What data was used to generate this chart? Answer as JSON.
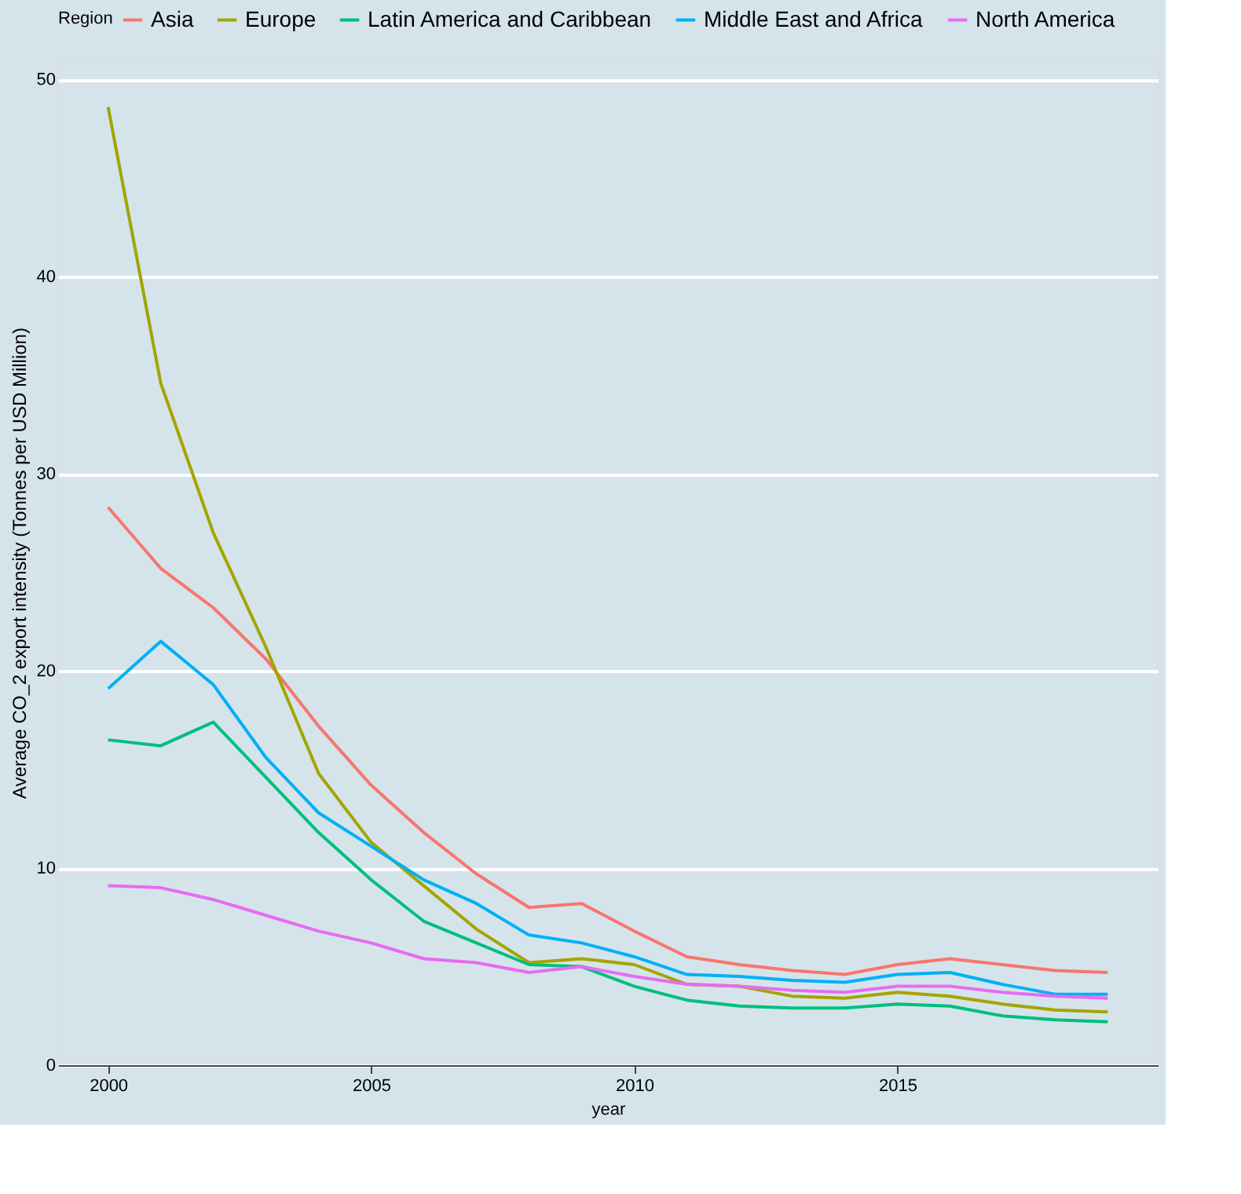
{
  "chart_data": {
    "type": "line",
    "xlabel": "year",
    "ylabel": "Average CO_2 export intensity (Tonnes per USD Million)",
    "legend_title": "Region",
    "legend": "top",
    "grid": "y",
    "marker": "none",
    "line_style": "solid",
    "x": [
      2000,
      2001,
      2002,
      2003,
      2004,
      2005,
      2006,
      2007,
      2008,
      2009,
      2010,
      2011,
      2012,
      2013,
      2014,
      2015,
      2016,
      2017,
      2018,
      2019
    ],
    "xlim": [
      1999.05,
      2019.95
    ],
    "xticks": [
      2000,
      2005,
      2010,
      2015
    ],
    "ylim": [
      0,
      51
    ],
    "yticks": [
      0,
      10,
      20,
      30,
      40,
      50
    ],
    "series": [
      {
        "name": "Asia",
        "color": "#f8766d",
        "values": [
          28.3,
          25.2,
          23.2,
          20.6,
          17.2,
          14.2,
          11.8,
          9.7,
          8.0,
          8.2,
          6.8,
          5.5,
          5.1,
          4.8,
          4.6,
          5.1,
          5.4,
          5.1,
          4.8,
          4.7
        ]
      },
      {
        "name": "Europe",
        "color": "#a3a500",
        "values": [
          48.6,
          34.6,
          27.0,
          21.2,
          14.8,
          11.3,
          9.1,
          6.9,
          5.2,
          5.4,
          5.1,
          4.1,
          4.0,
          3.5,
          3.4,
          3.7,
          3.5,
          3.1,
          2.8,
          2.7
        ]
      },
      {
        "name": "Latin America and Caribbean",
        "color": "#00bf7d",
        "values": [
          16.5,
          16.2,
          17.4,
          14.6,
          11.8,
          9.4,
          7.3,
          6.2,
          5.1,
          5.0,
          4.0,
          3.3,
          3.0,
          2.9,
          2.9,
          3.1,
          3.0,
          2.5,
          2.3,
          2.2
        ]
      },
      {
        "name": "Middle East and Africa",
        "color": "#00b0f6",
        "values": [
          19.1,
          21.5,
          19.3,
          15.6,
          12.8,
          11.1,
          9.4,
          8.2,
          6.6,
          6.2,
          5.5,
          4.6,
          4.5,
          4.3,
          4.2,
          4.6,
          4.7,
          4.1,
          3.6,
          3.6
        ]
      },
      {
        "name": "North America",
        "color": "#e76bf3",
        "values": [
          9.1,
          9.0,
          8.4,
          7.6,
          6.8,
          6.2,
          5.4,
          5.2,
          4.7,
          5.0,
          4.5,
          4.1,
          4.0,
          3.8,
          3.7,
          4.0,
          4.0,
          3.7,
          3.5,
          3.4
        ]
      }
    ]
  }
}
